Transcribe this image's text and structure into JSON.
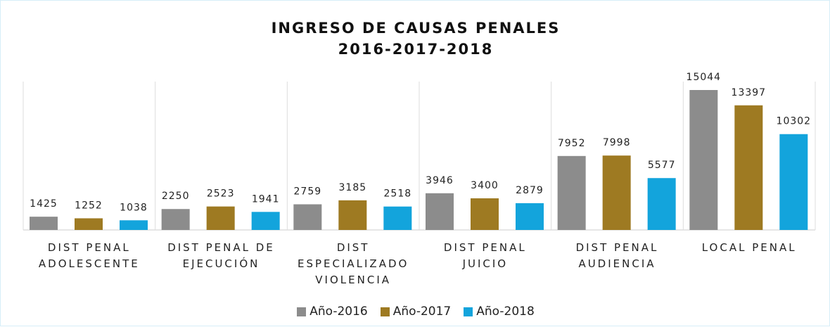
{
  "chart_data": {
    "type": "bar",
    "title": "INGRESO DE CAUSAS PENALES\n2016-2017-2018",
    "categories": [
      "DIST PENAL\nADOLESCENTE",
      "DIST PENAL DE\nEJECUCIÓN",
      "DIST\nESPECIALIZADO\nVIOLENCIA",
      "DIST PENAL\nJUICIO",
      "DIST PENAL\nAUDIENCIA",
      "LOCAL PENAL"
    ],
    "series": [
      {
        "name": "Año-2016",
        "color": "#8c8c8c",
        "values": [
          1425,
          2250,
          2759,
          3946,
          7952,
          15044
        ]
      },
      {
        "name": "Año-2017",
        "color": "#9e7a22",
        "values": [
          1252,
          2523,
          3185,
          3400,
          7998,
          13397
        ]
      },
      {
        "name": "Año-2018",
        "color": "#13a4dc",
        "values": [
          1038,
          1941,
          2518,
          2879,
          5577,
          10302
        ]
      }
    ],
    "legend": "bottom"
  }
}
